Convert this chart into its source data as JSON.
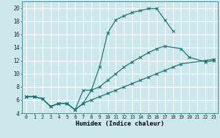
{
  "xlabel": "Humidex (Indice chaleur)",
  "background_color": "#cce8ec",
  "grid_color": "#ffffff",
  "line_color": "#1a7070",
  "xlim": [
    -0.5,
    23.5
  ],
  "ylim": [
    4,
    21
  ],
  "xticks": [
    0,
    1,
    2,
    3,
    4,
    5,
    6,
    7,
    8,
    9,
    10,
    11,
    12,
    13,
    14,
    15,
    16,
    17,
    18,
    19,
    20,
    21,
    22,
    23
  ],
  "yticks": [
    4,
    6,
    8,
    10,
    12,
    14,
    16,
    18,
    20
  ],
  "line1_x": [
    0,
    1,
    2,
    3,
    4,
    5,
    6,
    7,
    8,
    9,
    10,
    11,
    12,
    13,
    14,
    15,
    16,
    17,
    18
  ],
  "line1_y": [
    6.5,
    6.5,
    6.2,
    5.0,
    5.5,
    5.5,
    4.5,
    7.5,
    7.5,
    11.0,
    16.2,
    18.2,
    18.8,
    19.3,
    19.6,
    19.9,
    19.9,
    18.2,
    16.5
  ],
  "line2_x": [
    0,
    1,
    2,
    3,
    4,
    5,
    6,
    7,
    8,
    9,
    10,
    11,
    12,
    13,
    14,
    15,
    16,
    17,
    19,
    20,
    22,
    23
  ],
  "line2_y": [
    6.5,
    6.5,
    6.2,
    5.0,
    5.5,
    5.5,
    4.5,
    5.5,
    7.5,
    8.0,
    9.0,
    10.0,
    11.0,
    11.8,
    12.5,
    13.2,
    13.8,
    14.2,
    13.8,
    12.5,
    11.8,
    12.0
  ],
  "line3_x": [
    0,
    1,
    2,
    3,
    4,
    5,
    6,
    7,
    8,
    9,
    10,
    11,
    12,
    13,
    14,
    15,
    16,
    17,
    18,
    19,
    22,
    23
  ],
  "line3_y": [
    6.5,
    6.5,
    6.2,
    5.0,
    5.5,
    5.5,
    4.5,
    5.5,
    6.0,
    6.5,
    7.0,
    7.5,
    8.0,
    8.5,
    9.0,
    9.5,
    10.0,
    10.5,
    11.0,
    11.5,
    12.0,
    12.2
  ]
}
